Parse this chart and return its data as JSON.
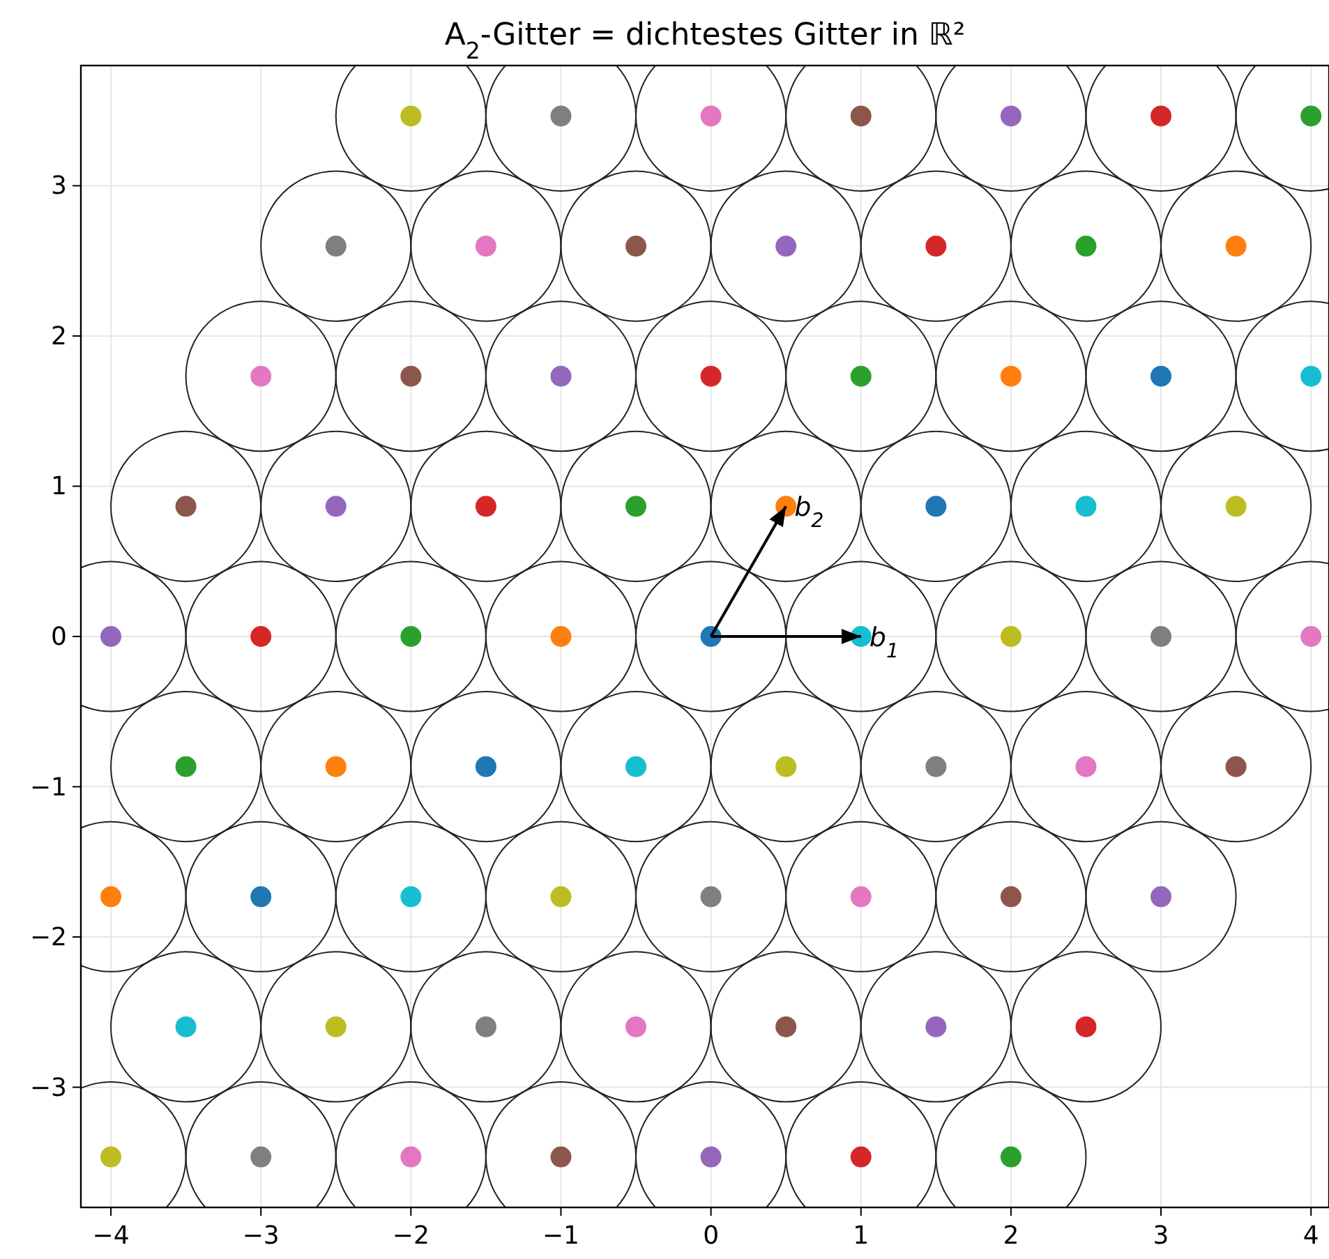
{
  "chart_data": {
    "type": "scatter",
    "title": "A$_{2}$-Gitter = dichtestes Gitter in ℝ²",
    "xlim": [
      -4.2,
      4.12
    ],
    "ylim": [
      -3.8,
      3.8
    ],
    "xticks": [
      {
        "value": -4,
        "label": "−4"
      },
      {
        "value": -3,
        "label": "−3"
      },
      {
        "value": -2,
        "label": "−2"
      },
      {
        "value": -1,
        "label": "−1"
      },
      0,
      1,
      2,
      3,
      4
    ],
    "yticks": [
      {
        "value": -3,
        "label": "−3"
      },
      {
        "value": -2,
        "label": "−2"
      },
      {
        "value": -1,
        "label": "−1"
      },
      0,
      1,
      2,
      3
    ],
    "grid": true,
    "marker": "circle",
    "annotations": [
      {
        "text": "b$_{1}$",
        "x": 1,
        "y": 0
      },
      {
        "text": "b$_{2}$",
        "x": 0.5,
        "y": 0.866
      }
    ],
    "series": [
      {
        "x": [
          -2,
          -1,
          0,
          1,
          2,
          3,
          4,
          -2.5,
          -1.5,
          -0.5,
          0.5,
          1.5,
          2.5,
          3.5,
          -3,
          -2,
          -1,
          0,
          1,
          2,
          3,
          4,
          -3.5,
          -2.5,
          -1.5,
          -0.5,
          0.5,
          1.5,
          2.5,
          3.5,
          -4,
          -3,
          -2,
          -1,
          0,
          1,
          2,
          3,
          4,
          -3.5,
          -2.5,
          -1.5,
          -0.5,
          0.5,
          1.5,
          2.5,
          3.5,
          -4,
          -3,
          -2,
          -1,
          0,
          1,
          2,
          3,
          -3.5,
          -2.5,
          -1.5,
          -0.5,
          0.5,
          1.5,
          2.5,
          -4,
          -3,
          -2,
          -1,
          0,
          1,
          2
        ],
        "values": [
          3.464,
          3.464,
          3.464,
          3.464,
          3.464,
          3.464,
          3.464,
          2.598,
          2.598,
          2.598,
          2.598,
          2.598,
          2.598,
          2.598,
          1.732,
          1.732,
          1.732,
          1.732,
          1.732,
          1.732,
          1.732,
          1.732,
          0.866,
          0.866,
          0.866,
          0.866,
          0.866,
          0.866,
          0.866,
          0.866,
          0,
          0,
          0,
          0,
          0,
          0,
          0,
          0,
          0,
          -0.866,
          -0.866,
          -0.866,
          -0.866,
          -0.866,
          -0.866,
          -0.866,
          -0.866,
          -1.732,
          -1.732,
          -1.732,
          -1.732,
          -1.732,
          -1.732,
          -1.732,
          -1.732,
          -2.598,
          -2.598,
          -2.598,
          -2.598,
          -2.598,
          -2.598,
          -2.598,
          -3.464,
          -3.464,
          -3.464,
          -3.464,
          -3.464,
          -3.464,
          -3.464
        ],
        "colors": [
          "#bcbd22",
          "#7f7f7f",
          "#e377c2",
          "#8c564b",
          "#9467bd",
          "#d62728",
          "#2ca02c",
          "#7f7f7f",
          "#e377c2",
          "#8c564b",
          "#9467bd",
          "#d62728",
          "#2ca02c",
          "#ff7f0e",
          "#e377c2",
          "#8c564b",
          "#9467bd",
          "#d62728",
          "#2ca02c",
          "#ff7f0e",
          "#1f77b4",
          "#17becf",
          "#8c564b",
          "#9467bd",
          "#d62728",
          "#2ca02c",
          "#ff7f0e",
          "#1f77b4",
          "#17becf",
          "#bcbd22",
          "#9467bd",
          "#d62728",
          "#2ca02c",
          "#ff7f0e",
          "#1f77b4",
          "#17becf",
          "#bcbd22",
          "#7f7f7f",
          "#e377c2",
          "#2ca02c",
          "#ff7f0e",
          "#1f77b4",
          "#17becf",
          "#bcbd22",
          "#7f7f7f",
          "#e377c2",
          "#8c564b",
          "#ff7f0e",
          "#1f77b4",
          "#17becf",
          "#bcbd22",
          "#7f7f7f",
          "#e377c2",
          "#8c564b",
          "#9467bd",
          "#17becf",
          "#bcbd22",
          "#7f7f7f",
          "#e377c2",
          "#8c564b",
          "#9467bd",
          "#d62728",
          "#bcbd22",
          "#7f7f7f",
          "#e377c2",
          "#8c564b",
          "#9467bd",
          "#d62728",
          "#2ca02c"
        ]
      }
    ]
  }
}
